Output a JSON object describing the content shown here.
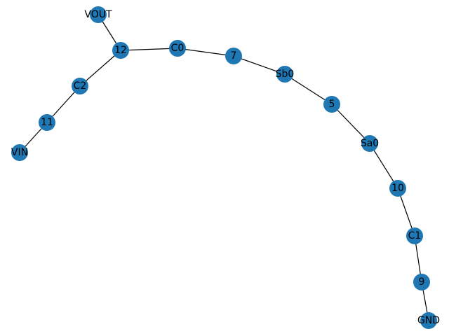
{
  "graph": {
    "node_color": "#1f77b4",
    "edge_color": "#000000",
    "label_color": "#000000",
    "nodes": [
      {
        "id": "VOUT",
        "label": "VOUT"
      },
      {
        "id": "12",
        "label": "12"
      },
      {
        "id": "C0",
        "label": "C0"
      },
      {
        "id": "7",
        "label": "7"
      },
      {
        "id": "Sb0",
        "label": "Sb0"
      },
      {
        "id": "5",
        "label": "5"
      },
      {
        "id": "Sa0",
        "label": "Sa0"
      },
      {
        "id": "10",
        "label": "10"
      },
      {
        "id": "C1",
        "label": "C1"
      },
      {
        "id": "9",
        "label": "9"
      },
      {
        "id": "GND",
        "label": "GND"
      },
      {
        "id": "C2",
        "label": "C2"
      },
      {
        "id": "11",
        "label": "11"
      },
      {
        "id": "VIN",
        "label": "VIN"
      }
    ],
    "edges": [
      [
        "VOUT",
        "12"
      ],
      [
        "12",
        "C0"
      ],
      [
        "C0",
        "7"
      ],
      [
        "7",
        "Sb0"
      ],
      [
        "Sb0",
        "5"
      ],
      [
        "5",
        "Sa0"
      ],
      [
        "Sa0",
        "10"
      ],
      [
        "10",
        "C1"
      ],
      [
        "C1",
        "9"
      ],
      [
        "9",
        "GND"
      ],
      [
        "12",
        "C2"
      ],
      [
        "C2",
        "11"
      ],
      [
        "11",
        "VIN"
      ]
    ]
  }
}
